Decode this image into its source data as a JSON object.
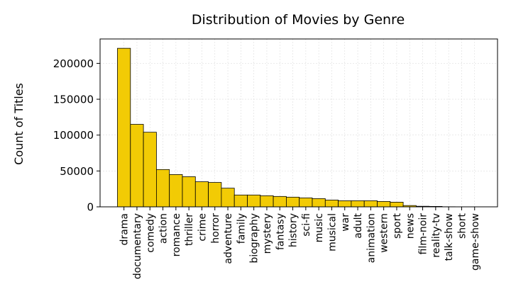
{
  "chart_data": {
    "type": "bar",
    "title": "Distribution of Movies by Genre",
    "xlabel": "",
    "ylabel": "Count of Titles",
    "ylim": [
      0,
      234000
    ],
    "yticks": [
      0,
      50000,
      100000,
      150000,
      200000
    ],
    "grid": true,
    "bar_color": "#F2CB05",
    "edge_color": "#000000",
    "categories": [
      "drama",
      "documentary",
      "comedy",
      "action",
      "romance",
      "thriller",
      "crime",
      "horror",
      "adventure",
      "family",
      "biography",
      "mystery",
      "fantasy",
      "history",
      "sci-fi",
      "music",
      "musical",
      "war",
      "adult",
      "animation",
      "western",
      "sport",
      "news",
      "film-noir",
      "reality-tv",
      "talk-show",
      "short",
      "game-show"
    ],
    "values": [
      221000,
      115000,
      104000,
      52000,
      45000,
      42000,
      35000,
      34000,
      26000,
      16500,
      16500,
      15500,
      14500,
      13500,
      12500,
      11500,
      9500,
      8500,
      8500,
      8500,
      7500,
      6500,
      1800,
      800,
      600,
      150,
      80,
      40
    ]
  }
}
